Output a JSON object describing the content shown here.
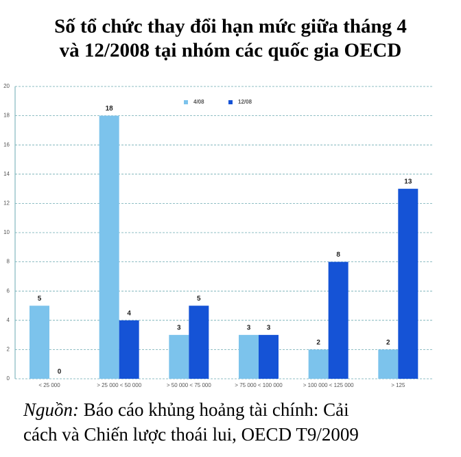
{
  "chart_data": {
    "type": "bar",
    "title": [
      "Số tổ chức thay đổi hạn mức giữa tháng 4",
      "và 12/2008 tại nhóm các quốc gia OECD"
    ],
    "categories": [
      "< 25 000",
      "> 25 000 < 50 000",
      "> 50 000 < 75 000",
      "> 75 000 < 100 000",
      "> 100 000 < 125 000",
      "> 125"
    ],
    "series": [
      {
        "name": "4/08",
        "color": "#7cc3ec",
        "values": [
          5,
          18,
          3,
          3,
          2,
          2
        ]
      },
      {
        "name": "12/08",
        "color": "#1553d6",
        "values": [
          0,
          4,
          5,
          3,
          8,
          13
        ]
      }
    ],
    "ylim": [
      0,
      20
    ],
    "yticks": [
      0,
      2,
      4,
      6,
      8,
      10,
      12,
      14,
      16,
      18,
      20
    ],
    "grid": true,
    "source_label": "Nguồn:",
    "source": [
      "Báo cáo khủng hoảng tài chính: Cải",
      "cách và Chiến lược thoái lui, OECD T9/2009"
    ]
  }
}
